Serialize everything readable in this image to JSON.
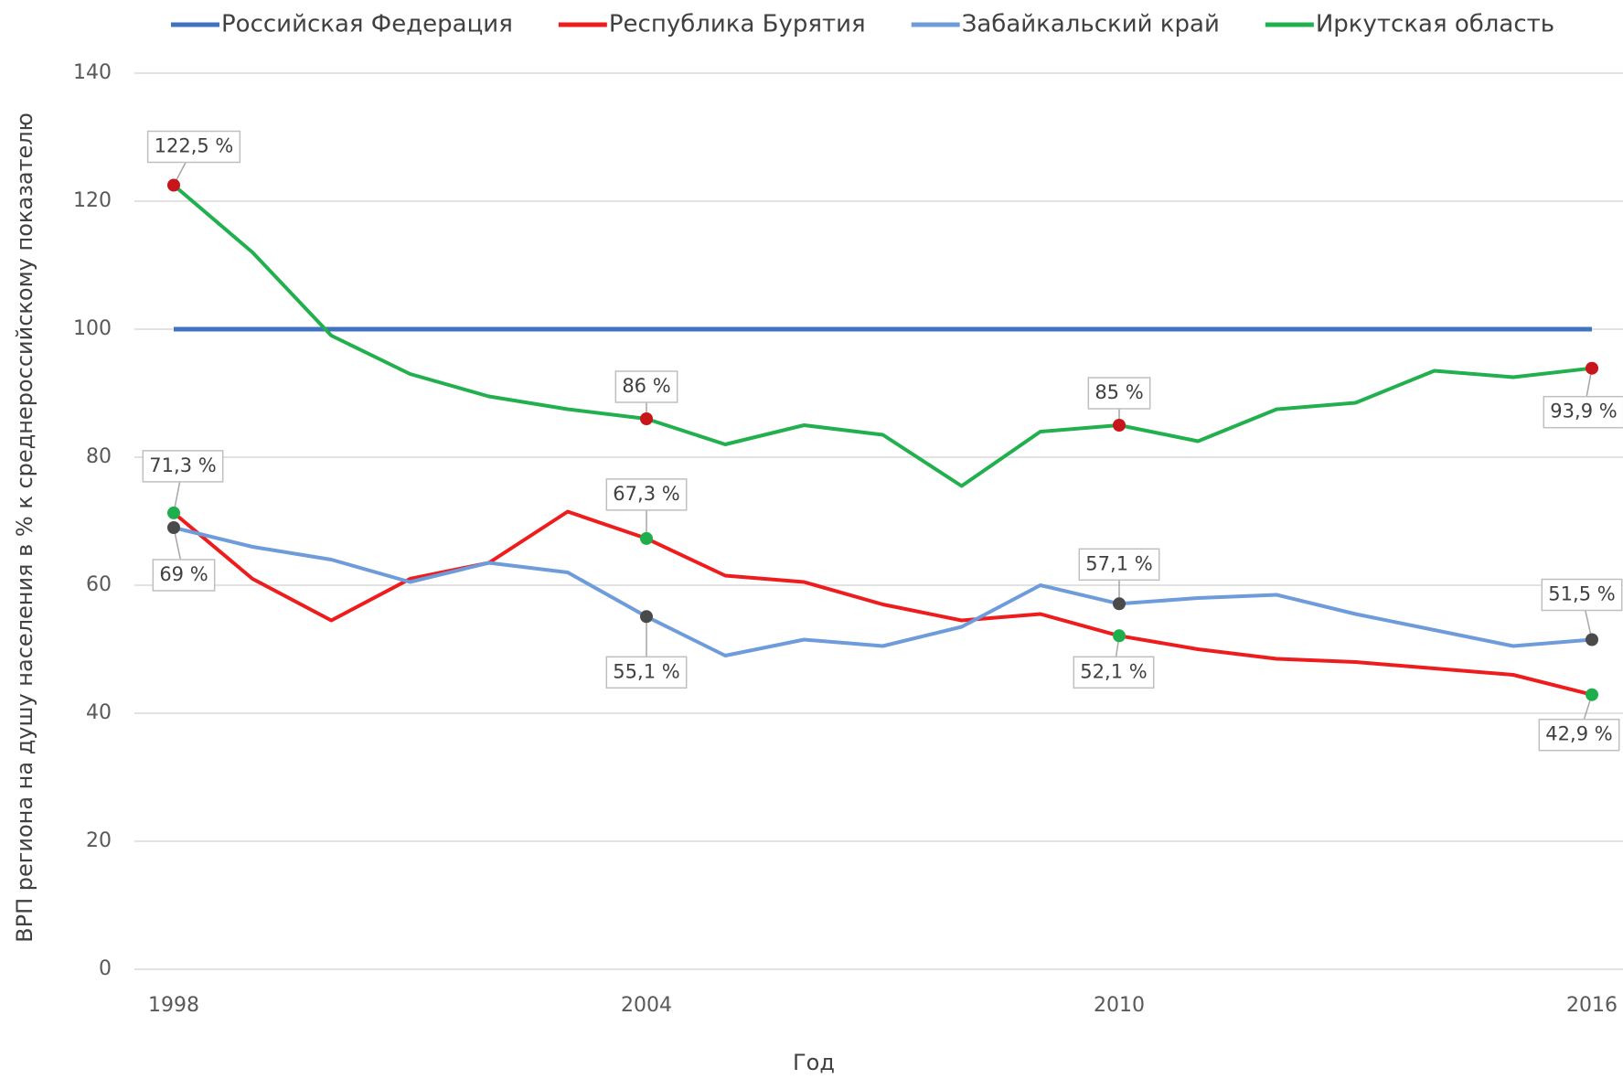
{
  "chart_data": {
    "type": "line",
    "x": [
      1998,
      1999,
      2000,
      2001,
      2002,
      2003,
      2004,
      2005,
      2006,
      2007,
      2008,
      2009,
      2010,
      2011,
      2012,
      2013,
      2014,
      2015,
      2016
    ],
    "xlim": [
      1998,
      2016
    ],
    "xticks": [
      1998,
      2004,
      2010,
      2016
    ],
    "ylim": [
      0,
      140
    ],
    "yticks": [
      0,
      20,
      40,
      60,
      80,
      100,
      120,
      140
    ],
    "grid": true,
    "legend": "top",
    "xlabel": "Год",
    "ylabel": "ВРП региона на душу населения в % к среднероссийскому показателю",
    "series": [
      {
        "name": "Российская Федерация",
        "color": "#3f72bf",
        "values": [
          100,
          100,
          100,
          100,
          100,
          100,
          100,
          100,
          100,
          100,
          100,
          100,
          100,
          100,
          100,
          100,
          100,
          100,
          100
        ]
      },
      {
        "name": "Республика Бурятия",
        "color": "#ee1c1c",
        "marker_color": "#1fae4c",
        "values": [
          71.3,
          61,
          54.5,
          61,
          63.5,
          71.5,
          67.3,
          61.5,
          60.5,
          57,
          54.5,
          55.5,
          52.1,
          50,
          48.5,
          48,
          47,
          46,
          42.9
        ],
        "value_labels": [
          "71,3 %",
          null,
          null,
          null,
          null,
          null,
          "67,3 %",
          null,
          null,
          null,
          null,
          null,
          "52,1 %",
          null,
          null,
          null,
          null,
          null,
          "42,9 %"
        ]
      },
      {
        "name": "Забайкальский край",
        "color": "#6e9cdb",
        "marker_color": "#4a4a4a",
        "values": [
          69,
          66,
          64,
          60.5,
          63.5,
          62,
          55.1,
          49,
          51.5,
          50.5,
          53.5,
          60,
          57.1,
          58,
          58.5,
          55.5,
          53,
          50.5,
          51.5
        ],
        "value_labels": [
          "69 %",
          null,
          null,
          null,
          null,
          null,
          "55,1 %",
          null,
          null,
          null,
          null,
          null,
          "57,1 %",
          null,
          null,
          null,
          null,
          null,
          "51,5 %"
        ]
      },
      {
        "name": "Иркутская область",
        "color": "#22b04e",
        "marker_color": "#c8141b",
        "values": [
          122.5,
          112,
          99,
          93,
          89.5,
          87.5,
          86,
          82,
          85,
          83.5,
          75.5,
          84,
          85,
          82.5,
          87.5,
          88.5,
          93.5,
          92.5,
          93.9
        ],
        "value_labels": [
          "122,5 %",
          null,
          null,
          null,
          null,
          null,
          "86 %",
          null,
          null,
          null,
          null,
          null,
          "85 %",
          null,
          null,
          null,
          null,
          null,
          "93,9 %"
        ]
      }
    ]
  }
}
